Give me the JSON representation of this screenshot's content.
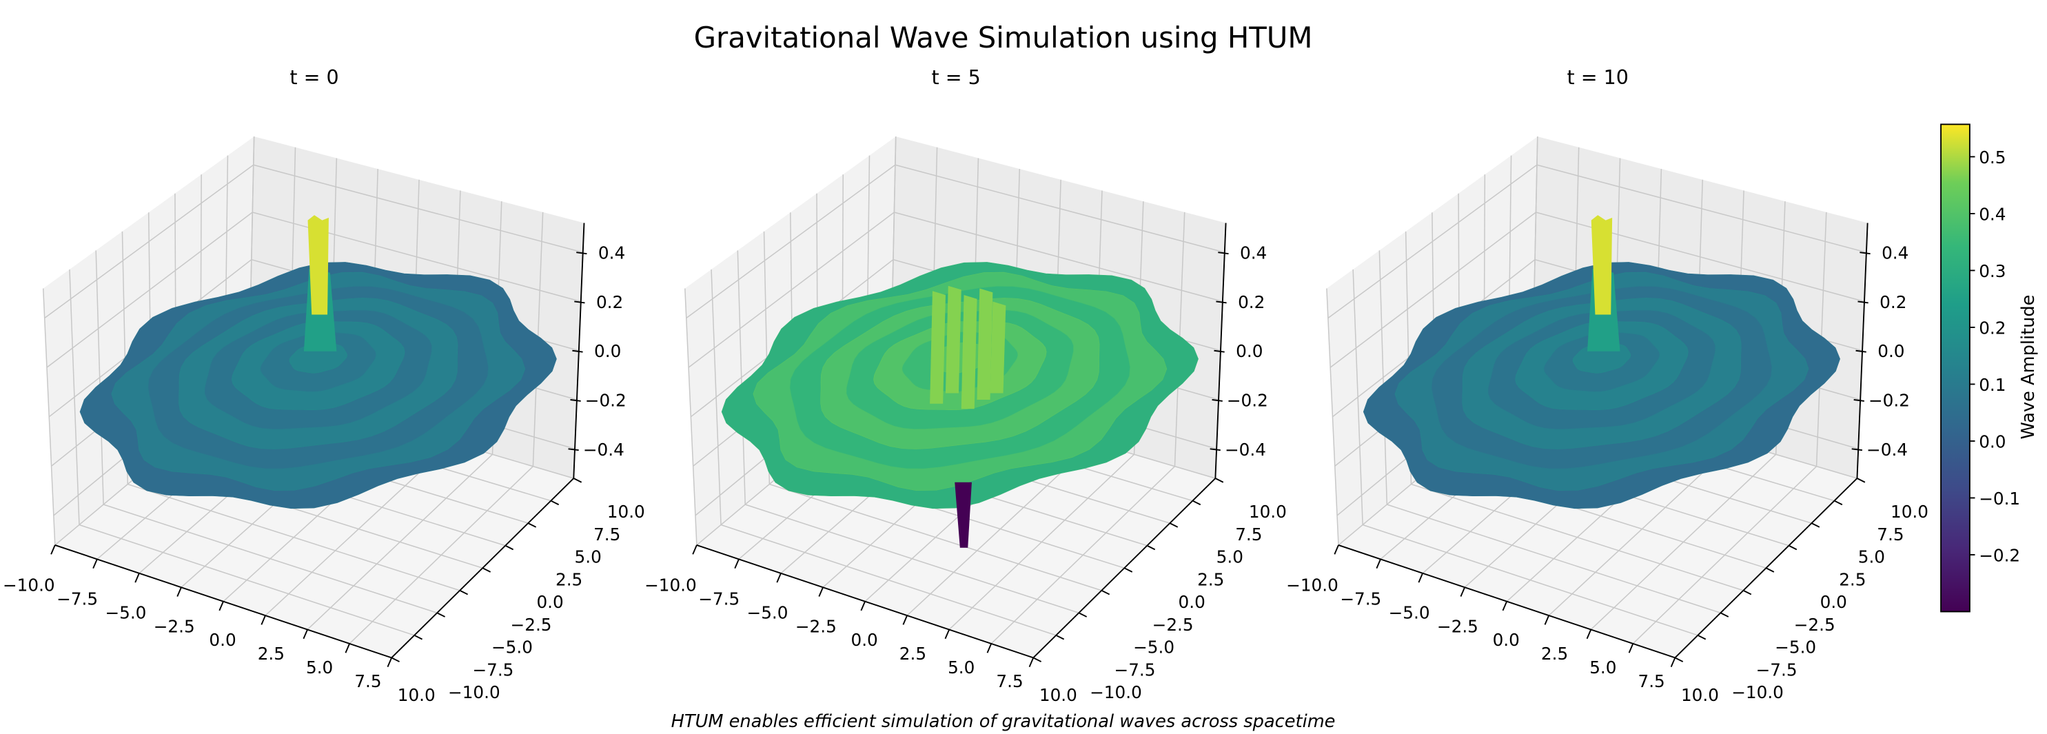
{
  "title": "Gravitational Wave Simulation using HTUM",
  "caption": "HTUM enables efficient simulation of gravitational waves across spacetime",
  "chart_data": {
    "type": "surface3d",
    "colormap": "viridis",
    "panels": [
      {
        "title": "t = 0",
        "base_amplitude": 0.03,
        "peak": 0.55,
        "min": -0.1
      },
      {
        "title": "t = 5",
        "base_amplitude": 0.3,
        "peak": 0.5,
        "min": -0.3
      },
      {
        "title": "t = 10",
        "base_amplitude": 0.03,
        "peak": 0.55,
        "min": -0.1
      }
    ],
    "x_ticks": [
      "−10.0",
      "−7.5",
      "−5.0",
      "−2.5",
      "0.0",
      "2.5",
      "5.0",
      "7.5",
      "10.0"
    ],
    "y_ticks": [
      "−10.0",
      "−7.5",
      "−5.0",
      "−2.5",
      "0.0",
      "2.5",
      "5.0",
      "7.5",
      "10.0"
    ],
    "z_ticks": [
      {
        "v": 0.4,
        "label": "0.4"
      },
      {
        "v": 0.2,
        "label": "0.2"
      },
      {
        "v": 0.0,
        "label": "0.0"
      },
      {
        "v": -0.2,
        "label": "−0.2"
      },
      {
        "v": -0.4,
        "label": "−0.4"
      }
    ],
    "xlim": [
      -10,
      10
    ],
    "ylim": [
      -10,
      10
    ],
    "zlim": [
      -0.52,
      0.52
    ],
    "grid": true,
    "colorbar": {
      "label": "Wave Amplitude",
      "range": [
        -0.3,
        0.557
      ],
      "ticks": [
        {
          "v": 0.5,
          "label": "0.5"
        },
        {
          "v": 0.4,
          "label": "0.4"
        },
        {
          "v": 0.3,
          "label": "0.3"
        },
        {
          "v": 0.2,
          "label": "0.2"
        },
        {
          "v": 0.1,
          "label": "0.1"
        },
        {
          "v": 0.0,
          "label": "0.0"
        },
        {
          "v": -0.1,
          "label": "−0.1"
        },
        {
          "v": -0.2,
          "label": "−0.2"
        }
      ]
    }
  }
}
